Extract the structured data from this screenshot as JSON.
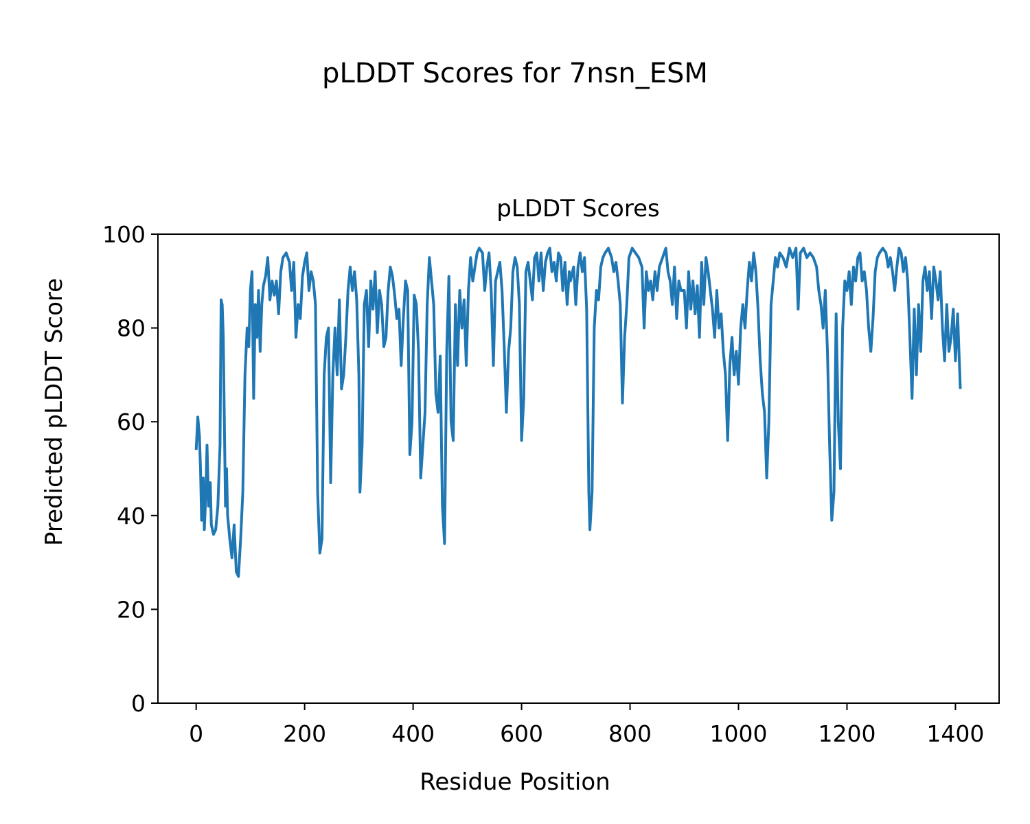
{
  "chart_data": {
    "type": "line",
    "suptitle": "pLDDT Scores for 7nsn_ESM",
    "title": "pLDDT Scores",
    "xlabel": "Residue Position",
    "ylabel": "Predicted pLDDT Score",
    "color": "#1f77b4",
    "xlim": [
      -70.5,
      1480.5
    ],
    "ylim": [
      0,
      100
    ],
    "xticks": [
      0,
      200,
      400,
      600,
      800,
      1000,
      1200,
      1400
    ],
    "yticks": [
      0,
      20,
      40,
      60,
      80,
      100
    ],
    "x": [
      0,
      3,
      6,
      8,
      10,
      13,
      15,
      18,
      20,
      23,
      26,
      28,
      32,
      36,
      40,
      44,
      46,
      48,
      50,
      52,
      54,
      56,
      58,
      62,
      66,
      70,
      74,
      78,
      82,
      86,
      90,
      94,
      97,
      100,
      103,
      106,
      109,
      112,
      115,
      118,
      121,
      124,
      128,
      132,
      136,
      140,
      144,
      148,
      152,
      156,
      160,
      166,
      172,
      176,
      180,
      184,
      188,
      192,
      196,
      200,
      204,
      208,
      212,
      216,
      220,
      224,
      228,
      232,
      236,
      240,
      244,
      248,
      252,
      256,
      260,
      264,
      268,
      272,
      276,
      280,
      284,
      288,
      292,
      296,
      300,
      302,
      306,
      310,
      314,
      318,
      322,
      326,
      330,
      334,
      338,
      342,
      346,
      350,
      354,
      358,
      362,
      366,
      370,
      374,
      378,
      382,
      386,
      390,
      394,
      398,
      402,
      406,
      410,
      414,
      418,
      422,
      426,
      430,
      434,
      438,
      442,
      446,
      450,
      454,
      458,
      462,
      466,
      470,
      474,
      478,
      482,
      486,
      490,
      494,
      498,
      502,
      506,
      510,
      514,
      518,
      522,
      528,
      532,
      536,
      540,
      544,
      548,
      552,
      556,
      560,
      564,
      568,
      572,
      576,
      580,
      584,
      588,
      592,
      596,
      600,
      604,
      608,
      612,
      616,
      620,
      624,
      628,
      632,
      636,
      640,
      644,
      648,
      652,
      656,
      660,
      664,
      668,
      672,
      676,
      680,
      684,
      688,
      690,
      696,
      700,
      704,
      708,
      712,
      716,
      720,
      724,
      726,
      730,
      734,
      738,
      742,
      746,
      750,
      754,
      760,
      766,
      770,
      774,
      778,
      782,
      786,
      790,
      794,
      798,
      804,
      810,
      816,
      822,
      826,
      830,
      834,
      838,
      842,
      846,
      850,
      854,
      860,
      866,
      870,
      874,
      878,
      882,
      886,
      890,
      894,
      900,
      904,
      908,
      912,
      916,
      920,
      924,
      928,
      932,
      936,
      940,
      944,
      948,
      952,
      956,
      960,
      964,
      968,
      972,
      976,
      980,
      984,
      988,
      992,
      996,
      1000,
      1004,
      1008,
      1012,
      1016,
      1020,
      1024,
      1028,
      1032,
      1036,
      1040,
      1044,
      1048,
      1052,
      1056,
      1060,
      1064,
      1068,
      1072,
      1076,
      1082,
      1088,
      1094,
      1100,
      1106,
      1110,
      1114,
      1120,
      1126,
      1132,
      1138,
      1144,
      1148,
      1152,
      1156,
      1160,
      1164,
      1168,
      1172,
      1176,
      1180,
      1184,
      1188,
      1192,
      1196,
      1200,
      1204,
      1208,
      1212,
      1216,
      1220,
      1224,
      1228,
      1232,
      1236,
      1240,
      1244,
      1248,
      1252,
      1256,
      1260,
      1266,
      1272,
      1276,
      1280,
      1284,
      1288,
      1292,
      1296,
      1300,
      1304,
      1308,
      1312,
      1316,
      1320,
      1324,
      1328,
      1332,
      1336,
      1340,
      1344,
      1348,
      1352,
      1356,
      1360,
      1364,
      1368,
      1372,
      1376,
      1380,
      1384,
      1388,
      1392,
      1396,
      1400,
      1404,
      1409
    ],
    "values": [
      54,
      61,
      57,
      50,
      39,
      48,
      37,
      45,
      55,
      42,
      47,
      38,
      36,
      37,
      42,
      55,
      86,
      85,
      78,
      60,
      42,
      50,
      40,
      35,
      31,
      38,
      28,
      27,
      35,
      45,
      70,
      80,
      76,
      88,
      92,
      65,
      85,
      78,
      88,
      75,
      85,
      89,
      91,
      95,
      86,
      90,
      87,
      90,
      83,
      92,
      95,
      96,
      94,
      88,
      94,
      78,
      85,
      82,
      91,
      94,
      96,
      88,
      92,
      90,
      85,
      45,
      32,
      35,
      70,
      78,
      80,
      47,
      70,
      80,
      70,
      86,
      67,
      70,
      78,
      88,
      93,
      88,
      92,
      86,
      70,
      45,
      55,
      85,
      88,
      76,
      90,
      84,
      92,
      79,
      88,
      85,
      76,
      78,
      88,
      93,
      91,
      87,
      82,
      84,
      72,
      82,
      90,
      88,
      53,
      60,
      87,
      85,
      75,
      48,
      55,
      62,
      85,
      95,
      90,
      85,
      66,
      62,
      74,
      42,
      34,
      75,
      91,
      60,
      56,
      85,
      72,
      88,
      80,
      86,
      72,
      88,
      95,
      90,
      93,
      96,
      97,
      96,
      88,
      93,
      96,
      88,
      72,
      90,
      92,
      94,
      88,
      76,
      62,
      75,
      80,
      92,
      95,
      93,
      85,
      56,
      65,
      92,
      94,
      90,
      86,
      95,
      96,
      90,
      96,
      88,
      94,
      96,
      97,
      92,
      94,
      90,
      96,
      95,
      88,
      94,
      85,
      92,
      90,
      93,
      85,
      93,
      96,
      92,
      95,
      84,
      45,
      37,
      45,
      80,
      88,
      86,
      93,
      95,
      96,
      97,
      95,
      92,
      94,
      90,
      85,
      64,
      78,
      85,
      95,
      97,
      96,
      95,
      93,
      80,
      92,
      88,
      90,
      86,
      92,
      88,
      93,
      95,
      97,
      92,
      90,
      85,
      93,
      82,
      90,
      88,
      88,
      80,
      92,
      84,
      90,
      83,
      89,
      78,
      94,
      85,
      95,
      92,
      88,
      84,
      78,
      88,
      80,
      83,
      75,
      70,
      56,
      72,
      78,
      70,
      75,
      68,
      80,
      85,
      80,
      88,
      94,
      90,
      96,
      92,
      84,
      73,
      66,
      62,
      48,
      60,
      85,
      90,
      95,
      93,
      96,
      95,
      93,
      97,
      95,
      97,
      84,
      96,
      97,
      95,
      96,
      95,
      93,
      88,
      85,
      80,
      88,
      75,
      55,
      39,
      45,
      83,
      60,
      50,
      80,
      90,
      88,
      92,
      85,
      93,
      90,
      95,
      96,
      90,
      92,
      88,
      80,
      75,
      82,
      92,
      95,
      96,
      97,
      96,
      93,
      95,
      92,
      88,
      93,
      97,
      96,
      92,
      95,
      90,
      78,
      65,
      84,
      70,
      85,
      75,
      90,
      93,
      88,
      92,
      82,
      93,
      90,
      86,
      92,
      80,
      73,
      85,
      75,
      78,
      84,
      73,
      83,
      67
    ]
  }
}
